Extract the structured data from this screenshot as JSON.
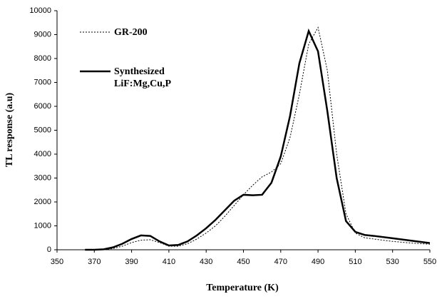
{
  "chart_data": {
    "type": "line",
    "xlabel": "Temperature (K)",
    "ylabel": "TL response (a.u)",
    "x": [
      365,
      370,
      375,
      380,
      385,
      390,
      395,
      400,
      405,
      410,
      415,
      420,
      425,
      430,
      435,
      440,
      445,
      450,
      455,
      460,
      465,
      470,
      475,
      480,
      485,
      490,
      495,
      500,
      505,
      510,
      515,
      520,
      530,
      540,
      550
    ],
    "series": [
      {
        "name": "GR-200",
        "color": "#000000",
        "style": "dotted",
        "values": [
          0,
          0,
          10,
          50,
          150,
          300,
          400,
          420,
          300,
          150,
          150,
          250,
          450,
          700,
          1000,
          1400,
          1850,
          2300,
          2700,
          3050,
          3250,
          3600,
          4700,
          6500,
          8600,
          9300,
          7500,
          4000,
          1500,
          700,
          500,
          450,
          350,
          280,
          230
        ]
      },
      {
        "name": "Synthesized LiF:Mg,Cu,P",
        "color": "#000000",
        "style": "solid",
        "values": [
          0,
          0,
          20,
          100,
          250,
          450,
          600,
          580,
          350,
          180,
          200,
          350,
          600,
          900,
          1250,
          1650,
          2050,
          2300,
          2280,
          2300,
          2800,
          3900,
          5600,
          7800,
          9150,
          8300,
          5800,
          3000,
          1200,
          750,
          620,
          580,
          480,
          380,
          280
        ]
      }
    ],
    "xlim": [
      350,
      550
    ],
    "xticks": [
      350,
      370,
      390,
      410,
      430,
      450,
      470,
      490,
      510,
      530,
      550
    ],
    "ylim": [
      0,
      10000
    ],
    "yticks": [
      0,
      1000,
      2000,
      3000,
      4000,
      5000,
      6000,
      7000,
      8000,
      9000,
      10000
    ],
    "grid": false
  }
}
